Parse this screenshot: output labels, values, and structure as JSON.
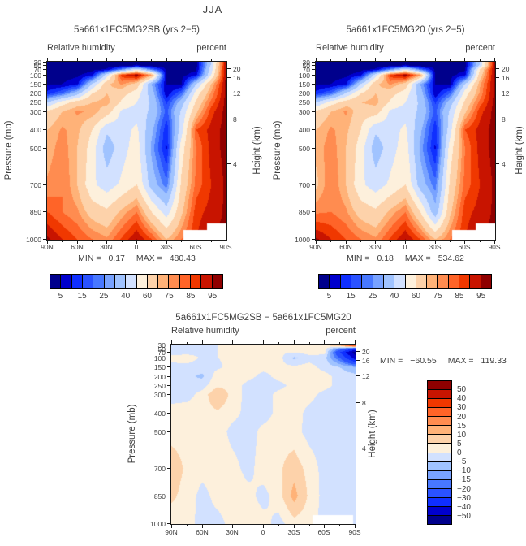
{
  "figure_title": "JJA",
  "palette": [
    "#00008c",
    "#0000cd",
    "#0f2fff",
    "#2a52ff",
    "#4878ff",
    "#78a2ff",
    "#a0c3ff",
    "#d2e1ff",
    "#fdf0dc",
    "#fdd2aa",
    "#ffb278",
    "#ff8c50",
    "#ff6428",
    "#f03800",
    "#c81400",
    "#8f0000"
  ],
  "colorbar": {
    "rh_labels": [
      5,
      15,
      25,
      40,
      60,
      75,
      85,
      95
    ]
  },
  "axes": {
    "pressure_label": "Pressure (mb)",
    "height_label": "Height (km)",
    "pressure_ticks": [
      30,
      50,
      70,
      100,
      150,
      200,
      250,
      300,
      400,
      500,
      700,
      850,
      1000
    ],
    "height_ticks": [
      20,
      16,
      12,
      8,
      4
    ],
    "lat_labels": [
      "90N",
      "60N",
      "30N",
      "0",
      "30S",
      "60S",
      "90S"
    ]
  },
  "chart_data": [
    {
      "type": "heatmap",
      "title": "5a661x1FC5MG2SB (yrs 2−5)",
      "var_label": "Relative humidity",
      "units": "percent",
      "min_label": "MIN =",
      "min": "0.17",
      "max_label": "MAX =",
      "max": "480.43",
      "x_lat": [
        90,
        75,
        60,
        45,
        30,
        15,
        0,
        -15,
        -30,
        -45,
        -60,
        -75,
        -90
      ],
      "y_pressure_mb": [
        30,
        50,
        70,
        100,
        150,
        200,
        250,
        300,
        400,
        500,
        700,
        850,
        1000
      ],
      "levels": [
        5,
        10,
        15,
        20,
        25,
        30,
        40,
        50,
        60,
        70,
        75,
        80,
        85,
        90,
        95
      ],
      "values": [
        [
          2,
          2,
          2,
          2,
          2,
          2,
          3,
          2,
          2,
          2,
          3,
          40,
          97
        ],
        [
          2,
          2,
          2,
          2,
          2,
          3,
          6,
          3,
          2,
          2,
          3,
          42,
          97
        ],
        [
          2,
          2,
          2,
          3,
          6,
          25,
          48,
          22,
          4,
          2,
          4,
          45,
          97
        ],
        [
          3,
          3,
          4,
          8,
          45,
          88,
          97,
          75,
          3,
          3,
          8,
          50,
          97
        ],
        [
          4,
          5,
          8,
          40,
          68,
          76,
          66,
          30,
          5,
          4,
          40,
          70,
          97
        ],
        [
          12,
          20,
          35,
          60,
          70,
          64,
          55,
          35,
          6,
          20,
          55,
          76,
          97
        ],
        [
          40,
          55,
          65,
          70,
          73,
          58,
          50,
          38,
          14,
          35,
          62,
          82,
          97
        ],
        [
          62,
          70,
          76,
          74,
          65,
          48,
          46,
          38,
          18,
          42,
          68,
          88,
          97
        ],
        [
          70,
          76,
          72,
          60,
          42,
          46,
          52,
          32,
          11,
          46,
          85,
          92,
          97
        ],
        [
          72,
          78,
          70,
          55,
          34,
          46,
          55,
          28,
          9,
          55,
          80,
          92,
          97
        ],
        [
          76,
          80,
          70,
          52,
          45,
          52,
          60,
          35,
          22,
          62,
          82,
          90,
          96
        ],
        [
          85,
          80,
          76,
          66,
          62,
          72,
          80,
          60,
          45,
          68,
          88,
          92,
          96
        ],
        [
          96,
          90,
          85,
          80,
          76,
          86,
          95,
          85,
          70,
          80,
          90,
          96,
          96
        ]
      ],
      "cutouts": [
        {
          "lat_n": -47,
          "lat_s": -71,
          "p_above": 948
        },
        {
          "lat_n": -71,
          "lat_s": -90,
          "p_above": 912
        }
      ]
    },
    {
      "type": "heatmap",
      "title": "5a661x1FC5MG20 (yrs 2−5)",
      "var_label": "Relative humidity",
      "units": "percent",
      "min_label": "MIN =",
      "min": "0.18",
      "max_label": "MAX =",
      "max": "534.62",
      "x_lat": [
        90,
        75,
        60,
        45,
        30,
        15,
        0,
        -15,
        -30,
        -45,
        -60,
        -75,
        -90
      ],
      "y_pressure_mb": [
        30,
        50,
        70,
        100,
        150,
        200,
        250,
        300,
        400,
        500,
        700,
        850,
        1000
      ],
      "levels": [
        5,
        10,
        15,
        20,
        25,
        30,
        40,
        50,
        60,
        70,
        75,
        80,
        85,
        90,
        95
      ],
      "values": [
        [
          2,
          2,
          2,
          2,
          2,
          2,
          3,
          2,
          2,
          2,
          3,
          40,
          97
        ],
        [
          2,
          2,
          2,
          2,
          2,
          3,
          6,
          3,
          2,
          2,
          3,
          42,
          97
        ],
        [
          2,
          2,
          2,
          3,
          6,
          25,
          48,
          22,
          4,
          2,
          4,
          60,
          97
        ],
        [
          3,
          3,
          4,
          8,
          45,
          88,
          97,
          75,
          3,
          3,
          8,
          65,
          97
        ],
        [
          4,
          5,
          8,
          40,
          68,
          76,
          66,
          30,
          5,
          4,
          40,
          74,
          97
        ],
        [
          12,
          20,
          41,
          60,
          70,
          64,
          55,
          35,
          6,
          20,
          55,
          76,
          97
        ],
        [
          40,
          55,
          65,
          70,
          73,
          58,
          50,
          38,
          14,
          35,
          62,
          82,
          97
        ],
        [
          62,
          70,
          76,
          64,
          65,
          48,
          46,
          38,
          18,
          42,
          68,
          88,
          97
        ],
        [
          70,
          76,
          72,
          60,
          42,
          46,
          52,
          32,
          11,
          46,
          85,
          92,
          97
        ],
        [
          72,
          78,
          70,
          55,
          34,
          46,
          55,
          28,
          9,
          55,
          80,
          92,
          97
        ],
        [
          68,
          80,
          70,
          52,
          45,
          52,
          60,
          35,
          22,
          62,
          82,
          90,
          96
        ],
        [
          79,
          80,
          76,
          66,
          62,
          72,
          80,
          60,
          33,
          68,
          88,
          92,
          96
        ],
        [
          96,
          90,
          85,
          80,
          76,
          86,
          95,
          85,
          70,
          80,
          90,
          96,
          96
        ]
      ],
      "cutouts": [
        {
          "lat_n": -47,
          "lat_s": -71,
          "p_above": 948
        },
        {
          "lat_n": -71,
          "lat_s": -90,
          "p_above": 912
        }
      ]
    },
    {
      "type": "heatmap",
      "title": "5a661x1FC5MG2SB − 5a661x1FC5MG20",
      "var_label": "Relative humidity",
      "units": "percent",
      "min_label": "MIN =",
      "min": "−60.55",
      "max_label": "MAX =",
      "max": "119.33",
      "x_lat": [
        90,
        75,
        60,
        45,
        30,
        15,
        0,
        -15,
        -30,
        -45,
        -60,
        -75,
        -90
      ],
      "y_pressure_mb": [
        30,
        50,
        70,
        100,
        150,
        200,
        250,
        300,
        400,
        500,
        700,
        850,
        1000
      ],
      "levels": [
        -50,
        -40,
        -30,
        -20,
        -15,
        -10,
        -5,
        0,
        5,
        10,
        15,
        20,
        30,
        40,
        50
      ],
      "values": [
        [
          -1,
          -1,
          -1,
          0,
          0,
          0,
          1,
          2,
          2,
          3,
          3,
          15,
          45
        ],
        [
          -1,
          -1,
          -1,
          0,
          0,
          1,
          1,
          1,
          2,
          2,
          2,
          -15,
          -30
        ],
        [
          -2,
          -2,
          -1,
          0,
          1,
          1,
          1,
          1,
          0,
          2,
          2,
          -30,
          -55
        ],
        [
          2,
          3,
          -1,
          0,
          1,
          2,
          1,
          2,
          -6,
          -2,
          -3,
          -20,
          -45
        ],
        [
          -2,
          -2,
          -3,
          -1,
          2,
          3,
          2,
          1,
          1,
          2,
          -2,
          -5,
          -10
        ],
        [
          -2,
          -4,
          -6,
          3,
          4,
          2,
          -2,
          2,
          3,
          3,
          2,
          -2,
          -3
        ],
        [
          -2,
          -3,
          -2,
          4,
          3,
          -2,
          -3,
          -2,
          2,
          3,
          2,
          -2,
          -2
        ],
        [
          -2,
          -2,
          2,
          10,
          3,
          -2,
          -3,
          2,
          3,
          2,
          -2,
          -3,
          -2
        ],
        [
          2,
          3,
          3,
          4,
          2,
          -2,
          -3,
          2,
          3,
          -2,
          -3,
          -3,
          -2
        ],
        [
          3,
          3,
          2,
          3,
          -2,
          -3,
          2,
          3,
          2,
          -2,
          -3,
          -2,
          -2
        ],
        [
          8,
          4,
          2,
          3,
          2,
          -2,
          3,
          4,
          8,
          3,
          -2,
          -2,
          -3
        ],
        [
          6,
          3,
          -2,
          2,
          3,
          2,
          -2,
          3,
          12,
          4,
          -2,
          -3,
          -3
        ],
        [
          2,
          2,
          -2,
          -2,
          2,
          3,
          2,
          -2,
          3,
          2,
          -2,
          -3,
          -3
        ]
      ],
      "cutouts": [
        {
          "lat_n": -48,
          "lat_s": -88,
          "p_above": 952
        }
      ]
    }
  ]
}
